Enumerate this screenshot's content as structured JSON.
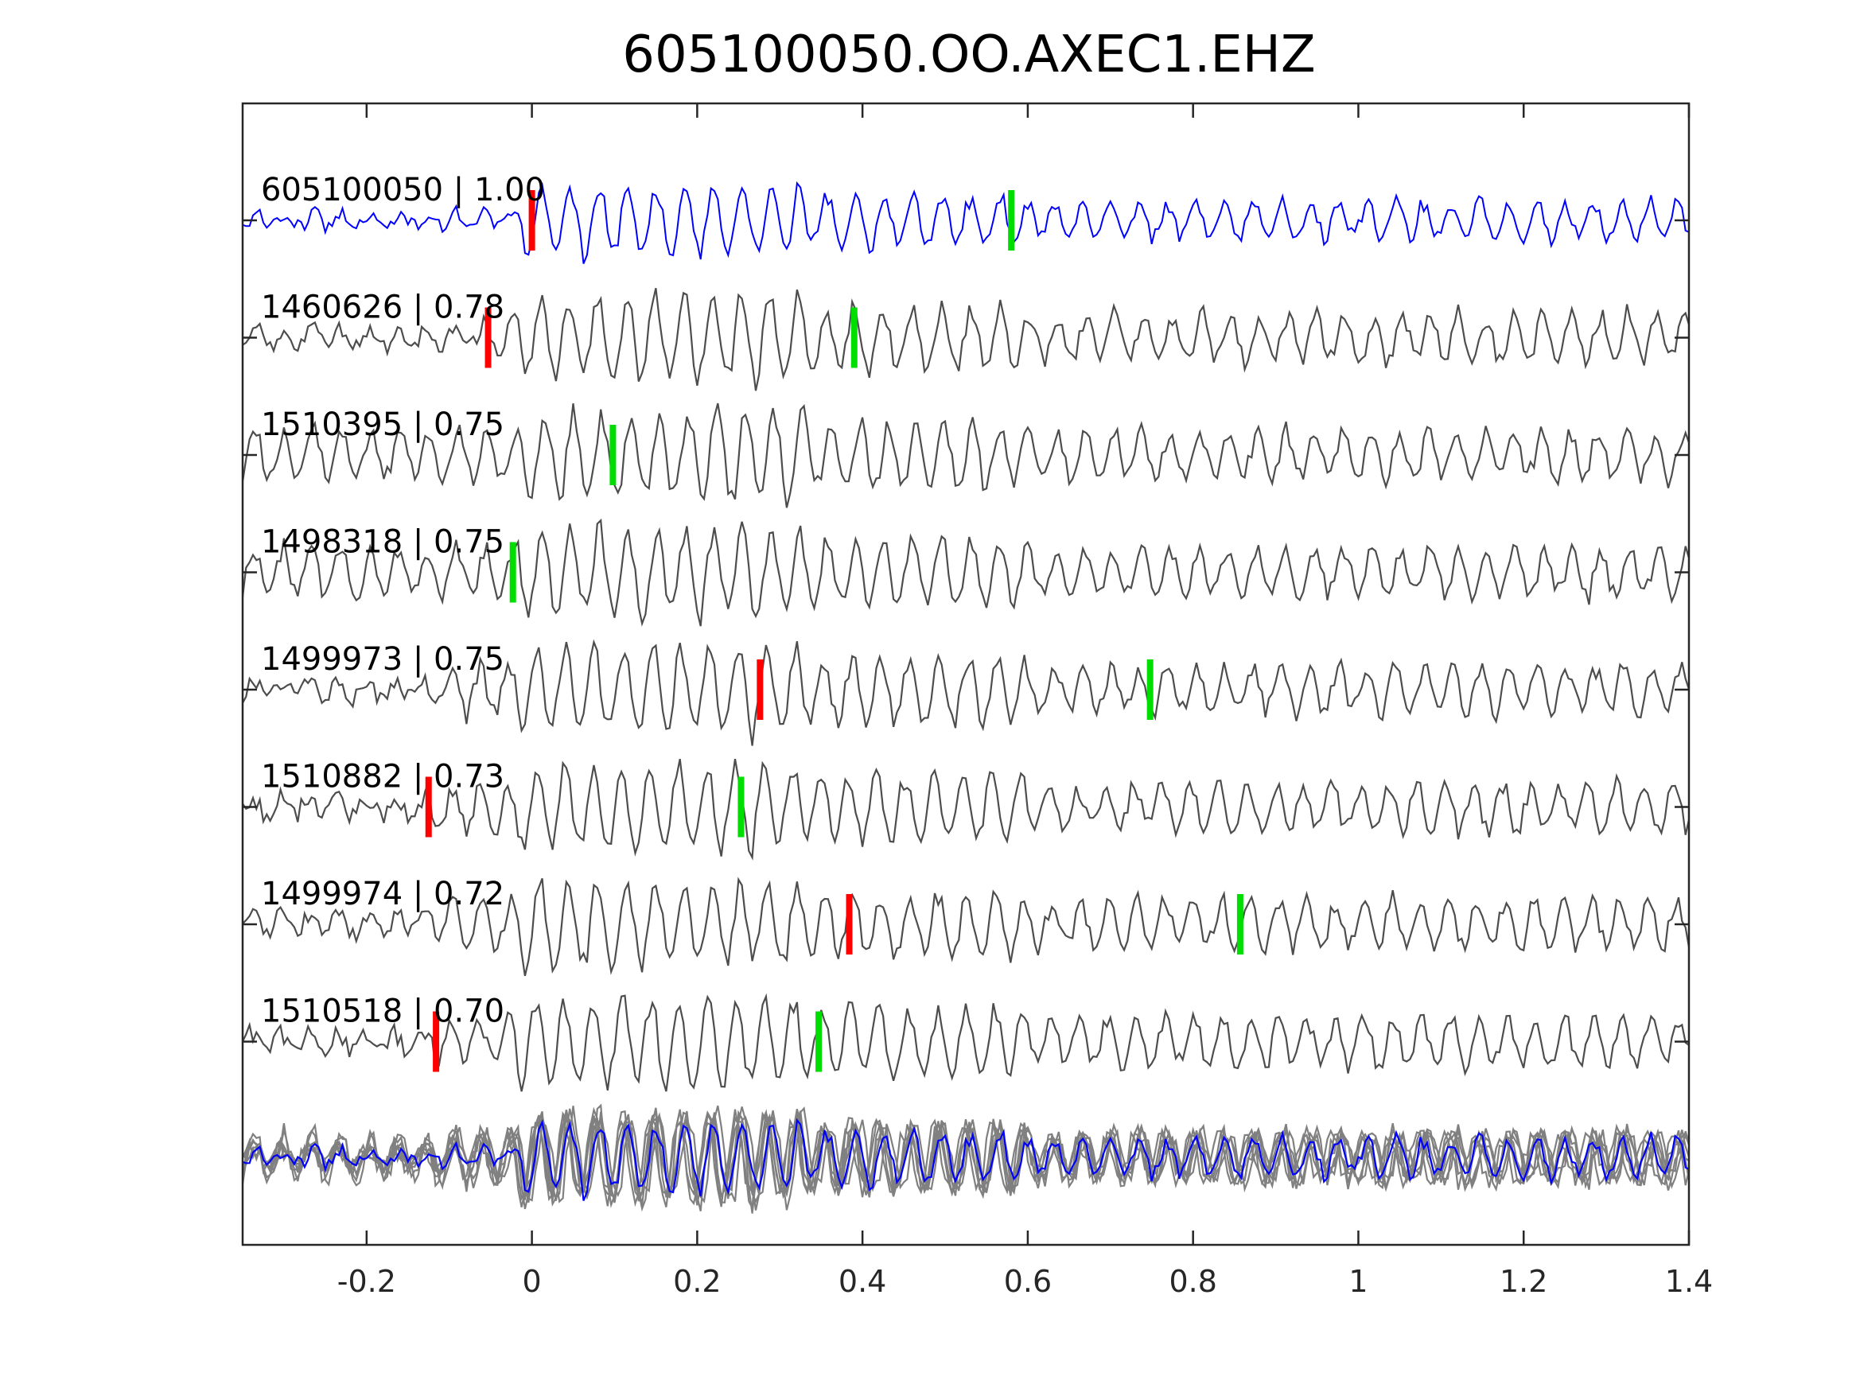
{
  "chart_data": {
    "type": "line",
    "title": "605100050.OO.AXEC1.EHZ",
    "xlabel": "",
    "ylabel": "",
    "xlim": [
      -0.35,
      1.4
    ],
    "xticks": [
      -0.2,
      0,
      0.2,
      0.4,
      0.6,
      0.8,
      1,
      1.2,
      1.4
    ],
    "xtick_labels": [
      "-0.2",
      "0",
      "0.2",
      "0.4",
      "0.6",
      "0.8",
      "1",
      "1.2",
      "1.4"
    ],
    "grid": false,
    "colors": {
      "template": "#0000ff",
      "match": "#4d4d4d",
      "stack_gray": "#808080",
      "p_pick": "#ff0000",
      "s_pick": "#00dd00",
      "axes": "#262626"
    },
    "series": [
      {
        "name": "605100050",
        "cc": "1.00",
        "label": "605100050 | 1.00",
        "p_pick": 0.0,
        "s_pick": 0.58,
        "onset": 0.0
      },
      {
        "name": "1460626",
        "cc": "0.78",
        "label": "1460626 | 0.78",
        "p_pick": -0.053,
        "s_pick": 0.39,
        "onset": -0.06
      },
      {
        "name": "1510395",
        "cc": "0.75",
        "label": "1510395 | 0.75",
        "p_pick": null,
        "s_pick": 0.098,
        "onset": -0.35
      },
      {
        "name": "1498318",
        "cc": "0.75",
        "label": "1498318 | 0.75",
        "p_pick": null,
        "s_pick": -0.023,
        "onset": -0.35
      },
      {
        "name": "1499973",
        "cc": "0.75",
        "label": "1499973 | 0.75",
        "p_pick": 0.276,
        "s_pick": 0.748,
        "onset": -0.1
      },
      {
        "name": "1510882",
        "cc": "0.73",
        "label": "1510882 | 0.73",
        "p_pick": -0.125,
        "s_pick": 0.253,
        "onset": -0.13
      },
      {
        "name": "1499974",
        "cc": "0.72",
        "label": "1499974 | 0.72",
        "p_pick": 0.384,
        "s_pick": 0.857,
        "onset": -0.1
      },
      {
        "name": "1510518",
        "cc": "0.70",
        "label": "1510518 | 0.70",
        "p_pick": -0.116,
        "s_pick": 0.347,
        "onset": -0.12
      }
    ],
    "stack": {
      "description_visible": false
    }
  }
}
